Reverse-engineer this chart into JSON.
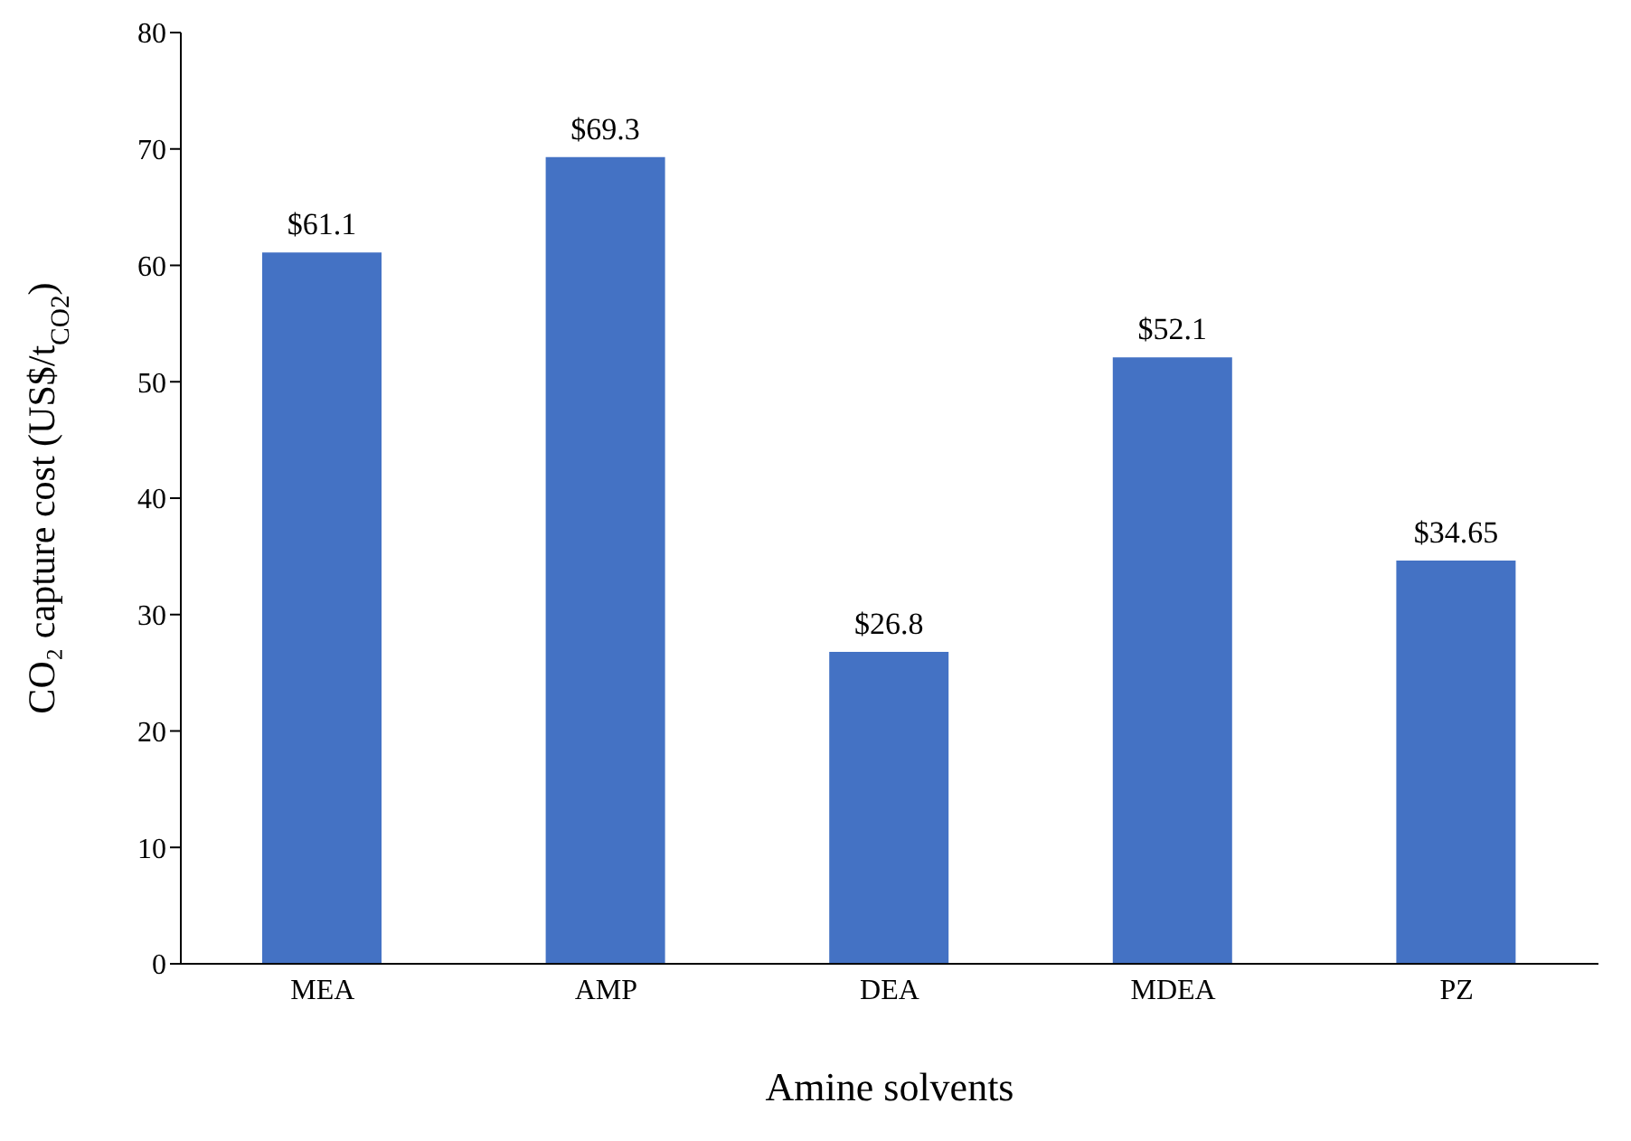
{
  "chart_data": {
    "type": "bar",
    "xlabel": "Amine solvents",
    "ylabel": "CO₂ capture cost (US$/t$_{CO2}$)",
    "categories": [
      "MEA",
      "AMP",
      "DEA",
      "MDEA",
      "PZ"
    ],
    "values": [
      61.1,
      69.3,
      26.8,
      52.1,
      34.65
    ],
    "value_labels": [
      "$61.1",
      "$69.3",
      "$26.8",
      "$52.1",
      "$34.65"
    ],
    "color": "#4472c4",
    "ylim": [
      0,
      80
    ],
    "yticks": [
      0,
      10,
      20,
      30,
      40,
      50,
      60,
      70,
      80
    ],
    "grid": false,
    "legend": false
  }
}
